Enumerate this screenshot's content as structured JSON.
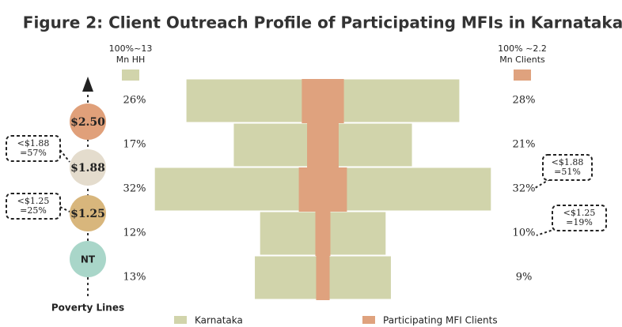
{
  "chart_data": {
    "type": "centered-bar",
    "title": "Figure 2: Client Outreach Profile of Participating MFIs in Karnataka",
    "series": [
      {
        "name": "Karnataka",
        "color": "#d1d4ab",
        "header": [
          "100%~13",
          "Mn HH"
        ],
        "values": [
          26,
          17,
          32,
          12,
          13
        ],
        "value_labels": [
          "26%",
          "17%",
          "32%",
          "12%",
          "13%"
        ]
      },
      {
        "name": "Participating MFI Clients",
        "color": "#dfa27e",
        "header": [
          "100% ~2.2",
          "Mn Clients"
        ],
        "values": [
          28,
          21,
          32,
          10,
          9
        ],
        "value_labels": [
          "28%",
          "21%",
          "32%",
          "10%",
          "9%"
        ]
      }
    ],
    "poverty_lines": [
      {
        "label": "$2.50",
        "color": "#e0a07a"
      },
      {
        "label": "$1.88",
        "color": "#e4dccd"
      },
      {
        "label": "$1.25",
        "color": "#d8b67c"
      },
      {
        "label": "NT",
        "color": "#a9d6c9"
      }
    ],
    "poverty_lines_label": "Poverty Lines",
    "annotations": [
      {
        "lines": [
          "<$1.88",
          "=57%"
        ]
      },
      {
        "lines": [
          "<$1.25",
          "=25%"
        ]
      },
      {
        "lines": [
          "<$1.88",
          "=51%"
        ]
      },
      {
        "lines": [
          "<$1.25",
          "=19%"
        ]
      }
    ]
  }
}
